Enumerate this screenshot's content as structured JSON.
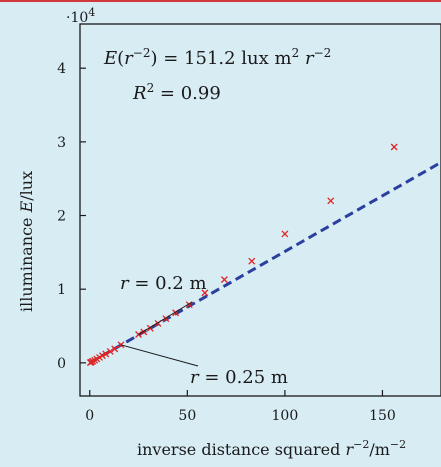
{
  "chart_data": {
    "type": "scatter",
    "title": "",
    "xlabel": "inverse distance squared r⁻²/m⁻²",
    "ylabel": "illuminance E/lux",
    "x_axis_title": {
      "pre": "inverse distance squared ",
      "var": "r",
      "exp": "−2",
      "post": "/m",
      "post_exp": "−2"
    },
    "y_axis_title": {
      "pre": "illuminance ",
      "var": "E",
      "post": "/lux"
    },
    "xlim": [
      -5,
      180
    ],
    "ylim": [
      -0.45,
      4.6
    ],
    "y_scale_label": "·10",
    "y_scale_exp": "4",
    "x_ticks": [
      {
        "value": 0,
        "label": "0"
      },
      {
        "value": 50,
        "label": "50"
      },
      {
        "value": 100,
        "label": "100"
      },
      {
        "value": 150,
        "label": "150"
      }
    ],
    "y_ticks": [
      {
        "value": 0,
        "label": "0"
      },
      {
        "value": 1,
        "label": "1"
      },
      {
        "value": 2,
        "label": "2"
      },
      {
        "value": 3,
        "label": "3"
      },
      {
        "value": 4,
        "label": "4"
      }
    ],
    "fit": {
      "slope": 151.2,
      "equation": {
        "lhs_var": "E",
        "lhs_arg": "r",
        "lhs_arg_exp": "−2",
        "rhs": " = 151.2 lux m",
        "rhs_exp1": "2",
        "rhs_var": " r",
        "rhs_exp2": "−2"
      },
      "r2": {
        "var": "R",
        "exp": "2",
        "value": " = 0.99"
      },
      "color": "#2a3f9e"
    },
    "series": [
      {
        "marker": "x",
        "color": "#e02424",
        "points": [
          [
            0.3,
            0.004
          ],
          [
            0.8,
            0.01
          ],
          [
            1.5,
            0.022
          ],
          [
            2.5,
            0.035
          ],
          [
            3.6,
            0.053
          ],
          [
            5.0,
            0.074
          ],
          [
            6.5,
            0.097
          ],
          [
            8.2,
            0.12
          ],
          [
            10.5,
            0.155
          ],
          [
            12.8,
            0.19
          ],
          [
            16.0,
            0.245
          ],
          [
            25.0,
            0.385
          ],
          [
            27.7,
            0.42
          ],
          [
            31.0,
            0.47
          ],
          [
            35.0,
            0.535
          ],
          [
            39.0,
            0.6
          ],
          [
            44.0,
            0.68
          ],
          [
            51.0,
            0.79
          ],
          [
            59.0,
            0.95
          ],
          [
            69.0,
            1.13
          ],
          [
            83.0,
            1.38
          ],
          [
            100.0,
            1.75
          ],
          [
            123.5,
            2.2
          ],
          [
            156.0,
            2.93
          ]
        ]
      }
    ],
    "annotations": [
      {
        "var": "r",
        "text": " = 0.2 m",
        "x": 25.0,
        "y": 0.385
      },
      {
        "var": "r",
        "text": " = 0.25 m",
        "x": 16.0,
        "y": 0.245
      }
    ],
    "grid": false,
    "legend": "none"
  }
}
